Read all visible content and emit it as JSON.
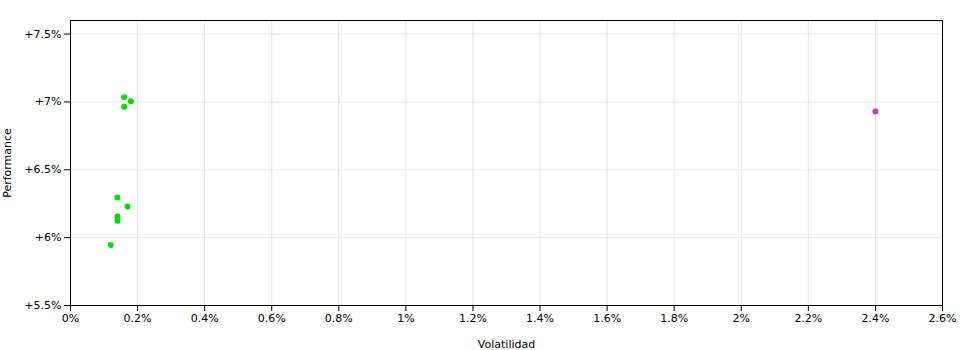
{
  "chart_data": {
    "type": "scatter",
    "xlabel": "Volatilidad",
    "ylabel": "Performance",
    "series": [
      {
        "color": "#00dd00",
        "x": [
          0.0016,
          0.0018,
          0.0016,
          0.0014,
          0.0017,
          0.0014,
          0.0014,
          0.0012
        ],
        "values": [
          0.07035,
          0.07005,
          0.06965,
          0.06295,
          0.0623,
          0.06155,
          0.06125,
          0.05945
        ]
      },
      {
        "color": "#cc33cc",
        "x": [
          0.024
        ],
        "values": [
          0.0693
        ]
      }
    ],
    "xlim": [
      0.0,
      0.026
    ],
    "ylim": [
      0.055,
      0.076
    ],
    "xticks": [
      {
        "value": 0.0,
        "label": "0%"
      },
      {
        "value": 0.002,
        "label": "0.2%"
      },
      {
        "value": 0.004,
        "label": "0.4%"
      },
      {
        "value": 0.006,
        "label": "0.6%"
      },
      {
        "value": 0.008,
        "label": "0.8%"
      },
      {
        "value": 0.01,
        "label": "1%"
      },
      {
        "value": 0.012,
        "label": "1.2%"
      },
      {
        "value": 0.014,
        "label": "1.4%"
      },
      {
        "value": 0.016,
        "label": "1.6%"
      },
      {
        "value": 0.018,
        "label": "1.8%"
      },
      {
        "value": 0.02,
        "label": "2%"
      },
      {
        "value": 0.022,
        "label": "2.2%"
      },
      {
        "value": 0.024,
        "label": "2.4%"
      },
      {
        "value": 0.026,
        "label": "2.6%"
      }
    ],
    "yticks": [
      {
        "value": 0.055,
        "label": "+5.5%"
      },
      {
        "value": 0.06,
        "label": "+6%"
      },
      {
        "value": 0.065,
        "label": "+6.5%"
      },
      {
        "value": 0.07,
        "label": "+7%"
      },
      {
        "value": 0.075,
        "label": "+7.5%"
      }
    ],
    "grid": true
  }
}
